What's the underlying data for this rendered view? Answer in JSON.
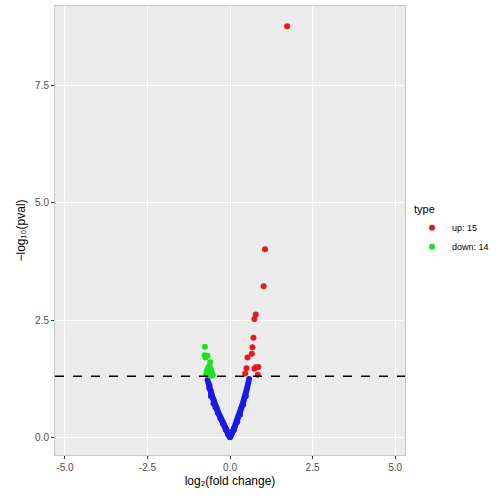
{
  "chart_data": {
    "type": "scatter",
    "x_label": "log₂(fold change)",
    "y_label": "−log₁₀(pval)",
    "legend_title": "type",
    "legend": "right",
    "grid": true,
    "xlim": [
      -5.3,
      5.3
    ],
    "ylim": [
      -0.38,
      9.2
    ],
    "xticks": [
      {
        "value": -5,
        "label": "-5.0"
      },
      {
        "value": -2.5,
        "label": "-2.5"
      },
      {
        "value": 0,
        "label": "0.0"
      },
      {
        "value": 2.5,
        "label": "2.5"
      },
      {
        "value": 5,
        "label": "5.0"
      }
    ],
    "yticks": [
      {
        "value": 0,
        "label": "0.0"
      },
      {
        "value": 2.5,
        "label": "2.5"
      },
      {
        "value": 5,
        "label": "5.0"
      },
      {
        "value": 7.5,
        "label": "7.5"
      }
    ],
    "reference_line": {
      "y": 1.301,
      "line_style": "dashed"
    },
    "series": [
      {
        "color": "#1a1ae6",
        "marker": "circle",
        "x": [
          -0.68,
          -0.65,
          -0.62,
          -0.63,
          -0.6,
          -0.58,
          -0.57,
          -0.55,
          -0.54,
          -0.52,
          -0.5,
          -0.48,
          -0.47,
          -0.45,
          -0.43,
          -0.41,
          -0.4,
          -0.38,
          -0.36,
          -0.34,
          -0.32,
          -0.3,
          -0.28,
          -0.26,
          -0.24,
          -0.22,
          -0.2,
          -0.18,
          -0.16,
          -0.14,
          -0.12,
          -0.1,
          -0.08,
          -0.06,
          -0.04,
          -0.02,
          -0.44,
          -0.37,
          -0.29,
          -0.21,
          -0.13,
          -0.05,
          -0.5,
          -0.58,
          0.02,
          0.04,
          0.06,
          0.08,
          0.1,
          0.12,
          0.14,
          0.16,
          0.18,
          0.2,
          0.22,
          0.24,
          0.26,
          0.28,
          0.3,
          0.32,
          0.34,
          0.36,
          0.38,
          0.4,
          0.42,
          0.44,
          0.46,
          0.48,
          0.5,
          0.52,
          0.54,
          0.56,
          0.58,
          0.3,
          0.22,
          0.12,
          0.4,
          0.48,
          0.01,
          0.0,
          -0.01
        ],
        "values": [
          1.22,
          1.15,
          1.1,
          1.05,
          1.02,
          0.98,
          0.93,
          0.9,
          0.86,
          0.83,
          0.8,
          0.76,
          0.72,
          0.7,
          0.66,
          0.63,
          0.6,
          0.57,
          0.53,
          0.5,
          0.47,
          0.44,
          0.41,
          0.38,
          0.35,
          0.32,
          0.29,
          0.26,
          0.23,
          0.2,
          0.17,
          0.14,
          0.11,
          0.08,
          0.06,
          0.03,
          0.64,
          0.52,
          0.4,
          0.28,
          0.16,
          0.05,
          0.72,
          0.88,
          0.03,
          0.06,
          0.09,
          0.12,
          0.15,
          0.19,
          0.22,
          0.26,
          0.3,
          0.34,
          0.38,
          0.42,
          0.46,
          0.5,
          0.54,
          0.58,
          0.62,
          0.66,
          0.7,
          0.75,
          0.8,
          0.85,
          0.9,
          0.95,
          1.0,
          1.06,
          1.12,
          1.18,
          1.24,
          0.48,
          0.33,
          0.16,
          0.7,
          0.88,
          0.01,
          0.0,
          0.01
        ]
      },
      {
        "name": "up: 15",
        "color": "#e41a1c",
        "marker": "circle",
        "x": [
          1.73,
          1.06,
          1.02,
          0.78,
          0.74,
          0.71,
          0.68,
          0.66,
          0.53,
          0.86,
          0.78,
          0.74,
          0.5,
          0.46,
          0.84
        ],
        "values": [
          8.77,
          4.01,
          3.22,
          2.62,
          2.52,
          2.12,
          1.92,
          1.78,
          1.7,
          1.5,
          1.49,
          1.46,
          1.47,
          1.36,
          1.33
        ]
      },
      {
        "name": "down: 14",
        "color": "#1fe01f",
        "marker": "circle",
        "x": [
          -0.76,
          -0.77,
          -0.74,
          -0.68,
          -0.6,
          -0.62,
          -0.66,
          -0.58,
          -0.7,
          -0.55,
          -0.64,
          -0.72,
          -0.52,
          -0.6
        ],
        "values": [
          1.93,
          1.75,
          1.7,
          1.74,
          1.6,
          1.52,
          1.48,
          1.45,
          1.42,
          1.38,
          1.36,
          1.34,
          1.32,
          1.31
        ]
      }
    ]
  }
}
